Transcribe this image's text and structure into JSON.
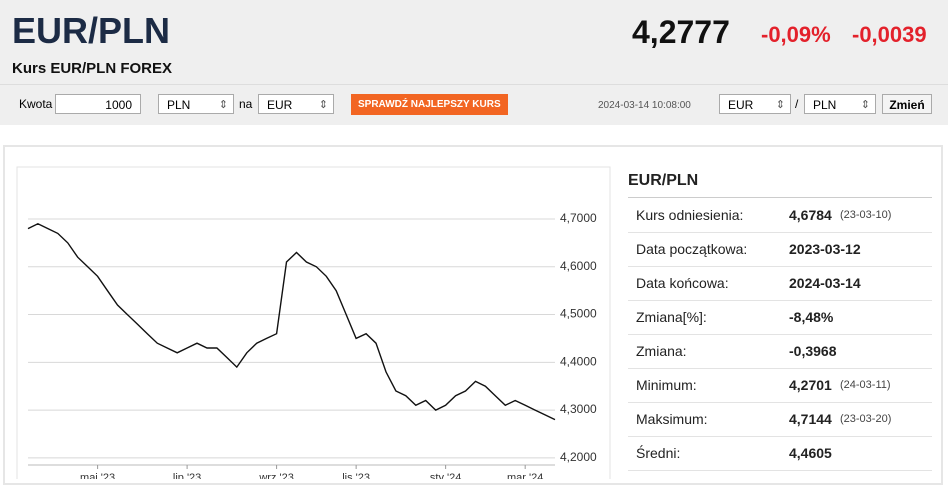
{
  "header": {
    "title": "EUR/PLN",
    "subtitle": "Kurs EUR/PLN FOREX",
    "price": "4,2777",
    "change_pct": "-0,09%",
    "change_abs": "-0,0039"
  },
  "converter": {
    "amount_label": "Kwota",
    "amount": "1000",
    "from": "PLN",
    "to_word": "na",
    "to": "EUR",
    "button": "SPRAWDŹ NAJLEPSZY KURS",
    "timestamp": "2024-03-14 10:08:00",
    "pair_from": "EUR",
    "separator": "/",
    "pair_to": "PLN",
    "swap": "Zmień"
  },
  "chart_data": {
    "type": "line",
    "color": "#111111",
    "categories": [
      null,
      null,
      null,
      null,
      null,
      null,
      null,
      "maj '23",
      null,
      null,
      null,
      null,
      null,
      null,
      null,
      null,
      "lip '23",
      null,
      null,
      null,
      null,
      null,
      null,
      null,
      null,
      "wrz '23",
      null,
      null,
      null,
      null,
      null,
      null,
      null,
      "lis '23",
      null,
      null,
      null,
      null,
      null,
      null,
      null,
      null,
      "sty '24",
      null,
      null,
      null,
      null,
      null,
      null,
      null,
      "mar '24",
      null,
      null,
      null
    ],
    "values": [
      4.68,
      4.69,
      4.68,
      4.67,
      4.65,
      4.62,
      4.6,
      4.58,
      4.55,
      4.52,
      4.5,
      4.48,
      4.46,
      4.44,
      4.43,
      4.42,
      4.43,
      4.44,
      4.43,
      4.43,
      4.41,
      4.39,
      4.42,
      4.44,
      4.45,
      4.46,
      4.61,
      4.63,
      4.61,
      4.6,
      4.58,
      4.55,
      4.5,
      4.45,
      4.46,
      4.44,
      4.38,
      4.34,
      4.33,
      4.31,
      4.32,
      4.3,
      4.31,
      4.33,
      4.34,
      4.36,
      4.35,
      4.33,
      4.31,
      4.32,
      4.31,
      4.3,
      4.29,
      4.28
    ],
    "ylim": [
      4.185,
      4.788
    ],
    "yticks": [
      {
        "value": 4.2,
        "label": "4,2000"
      },
      {
        "value": 4.3,
        "label": "4,3000"
      },
      {
        "value": 4.4,
        "label": "4,4000"
      },
      {
        "value": 4.5,
        "label": "4,5000"
      },
      {
        "value": 4.6,
        "label": "4,6000"
      },
      {
        "value": 4.7,
        "label": "4,7000"
      }
    ],
    "grid": true
  },
  "stats": {
    "title": "EUR/PLN",
    "rows": [
      {
        "label": "Kurs odniesienia:",
        "value": "4,6784",
        "date": "(23-03-10)"
      },
      {
        "label": "Data początkowa:",
        "value": "2023-03-12"
      },
      {
        "label": "Data końcowa:",
        "value": "2024-03-14"
      },
      {
        "label": "Zmiana[%]:",
        "value": "-8,48%"
      },
      {
        "label": "Zmiana:",
        "value": "-0,3968"
      },
      {
        "label": "Minimum:",
        "value": "4,2701",
        "date": "(24-03-11)"
      },
      {
        "label": "Maksimum:",
        "value": "4,7144",
        "date": "(23-03-20)"
      },
      {
        "label": "Średni:",
        "value": "4,4605"
      }
    ]
  }
}
